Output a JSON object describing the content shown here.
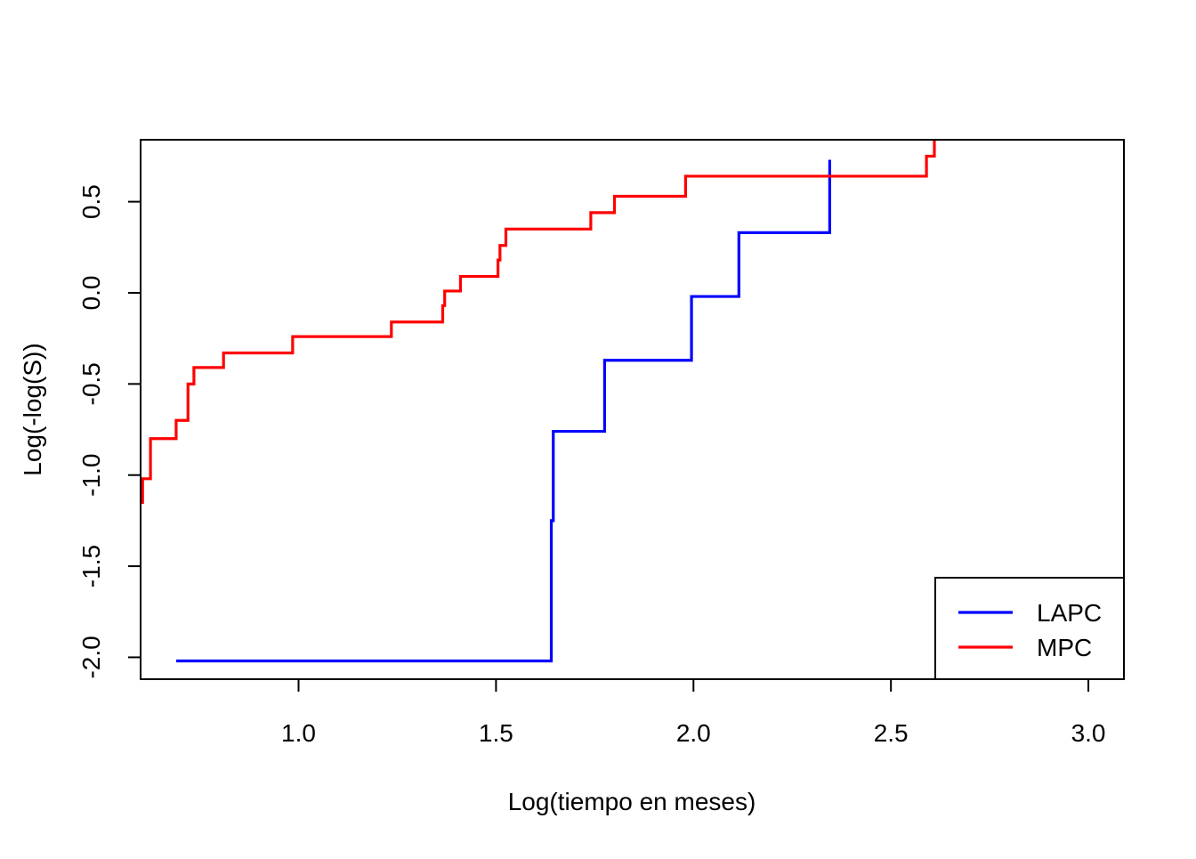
{
  "chart_data": {
    "type": "line",
    "title": "",
    "xlabel": "Log(tiempo en meses)",
    "ylabel": "Log(-log(S))",
    "xlim": [
      0.6,
      3.09
    ],
    "ylim": [
      -2.12,
      0.84
    ],
    "x_ticks": [
      1.0,
      1.5,
      2.0,
      2.5,
      3.0
    ],
    "x_tick_labels": [
      "1.0",
      "1.5",
      "2.0",
      "2.5",
      "3.0"
    ],
    "y_ticks": [
      -2.0,
      -1.5,
      -1.0,
      -0.5,
      0.0,
      0.5
    ],
    "y_tick_labels": [
      "-2.0",
      "-1.5",
      "-1.0",
      "-0.5",
      "0.0",
      "0.5"
    ],
    "grid": false,
    "legend_position": "bottom-right",
    "step": true,
    "series": [
      {
        "name": "LAPC",
        "color": "#0000FF",
        "points": [
          [
            0.69,
            -2.02
          ],
          [
            1.64,
            -1.25
          ],
          [
            1.645,
            -0.76
          ],
          [
            1.775,
            -0.37
          ],
          [
            1.995,
            -0.02
          ],
          [
            2.115,
            0.33
          ],
          [
            2.345,
            0.73
          ]
        ]
      },
      {
        "name": "MPC",
        "color": "#FF0000",
        "points": [
          [
            0.6,
            -1.15
          ],
          [
            0.605,
            -1.02
          ],
          [
            0.625,
            -0.8
          ],
          [
            0.69,
            -0.7
          ],
          [
            0.72,
            -0.5
          ],
          [
            0.735,
            -0.41
          ],
          [
            0.81,
            -0.33
          ],
          [
            0.985,
            -0.24
          ],
          [
            1.235,
            -0.16
          ],
          [
            1.365,
            -0.07
          ],
          [
            1.37,
            0.01
          ],
          [
            1.41,
            0.09
          ],
          [
            1.505,
            0.18
          ],
          [
            1.51,
            0.26
          ],
          [
            1.525,
            0.35
          ],
          [
            1.74,
            0.44
          ],
          [
            1.8,
            0.53
          ],
          [
            1.98,
            0.64
          ],
          [
            2.59,
            0.75
          ],
          [
            2.61,
            0.85
          ]
        ]
      }
    ]
  }
}
